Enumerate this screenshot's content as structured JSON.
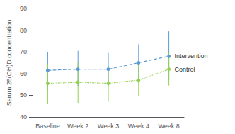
{
  "chart_data": {
    "type": "line",
    "ylabel": "Serum 25(OH)D concentration",
    "categories": [
      "Baseline",
      "Week 2",
      "Week 3",
      "Week 4",
      "Week 8"
    ],
    "series": [
      {
        "name": "Intervention",
        "color": "#5B9BD5",
        "line_style": "dashed",
        "marker": "circle",
        "values": [
          61.5,
          62.0,
          62.0,
          65.0,
          68.0
        ],
        "upper": [
          70.0,
          70.5,
          69.5,
          73.5,
          79.5
        ],
        "lower": [
          52.5,
          54.0,
          54.5,
          57.0,
          57.0
        ]
      },
      {
        "name": "Control",
        "color": "#92D050",
        "line_style": "dotted",
        "marker": "circle",
        "values": [
          55.5,
          56.0,
          55.5,
          57.0,
          62.0
        ],
        "upper": [
          64.5,
          65.0,
          63.5,
          65.0,
          69.5
        ],
        "lower": [
          46.0,
          46.5,
          47.0,
          49.5,
          54.5
        ]
      }
    ],
    "ylim": [
      40,
      90
    ],
    "yticks": [
      40,
      50,
      60,
      70,
      80,
      90
    ],
    "grid": false
  }
}
